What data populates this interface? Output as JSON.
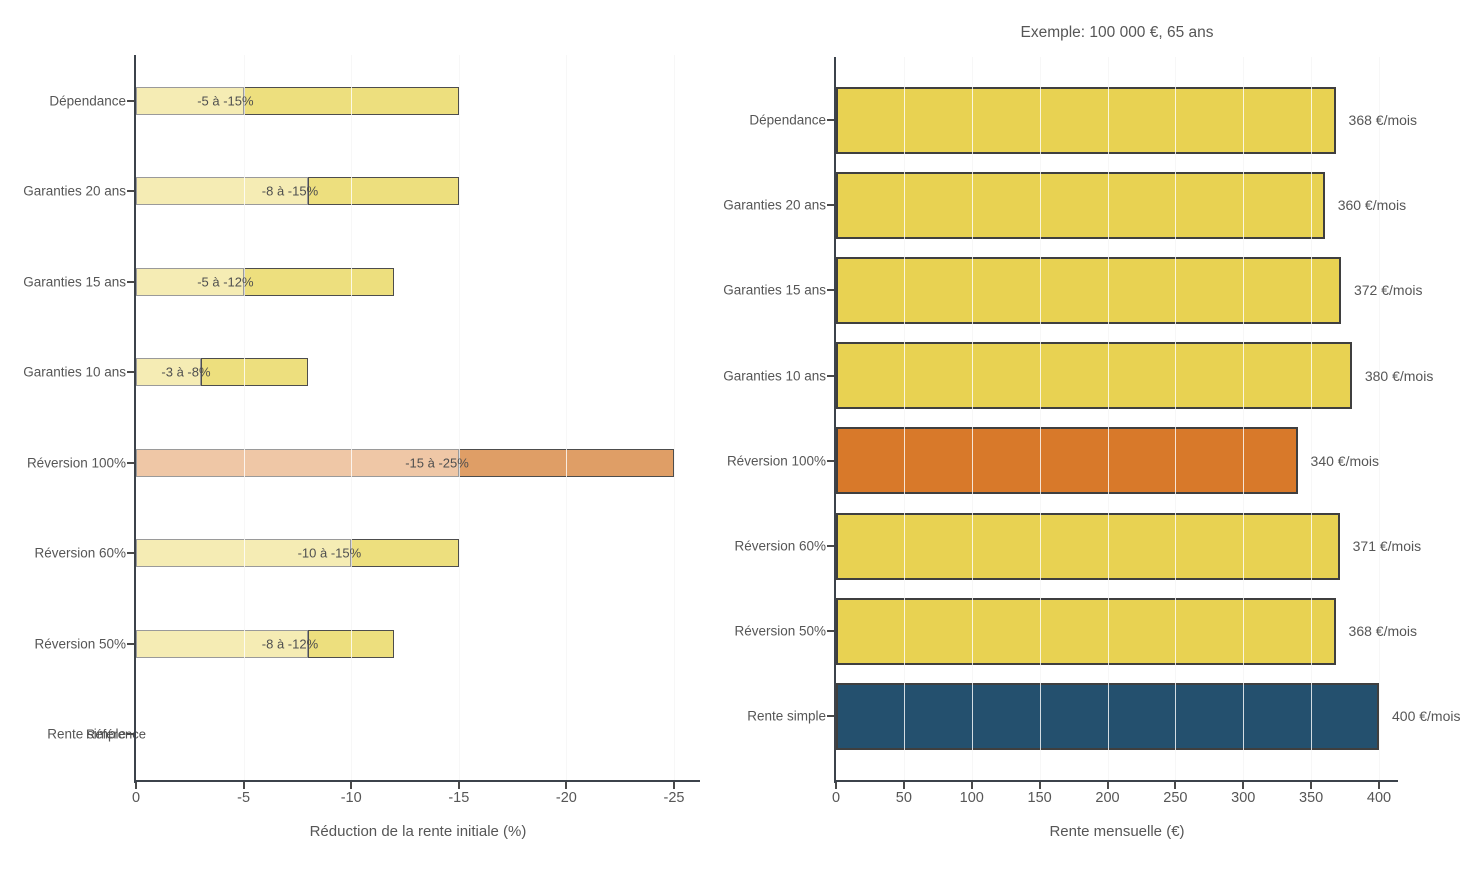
{
  "figure": {
    "background": "#ffffff",
    "description": "Deux graphiques à barres horizontales comparant des options de rente"
  },
  "colors": {
    "left_light_yellow": "#F5ECB4",
    "left_dark_yellow": "#EDDF7E",
    "left_light_orange": "#EFC7A6",
    "left_dark_orange": "#DF9E66",
    "left_light_border": "#9A9A9A",
    "left_dark_border": "#4D4D4D",
    "right_yellow": "#E8D252",
    "right_orange": "#D8792A",
    "right_blue": "#24506E",
    "right_bar_border": "#3F3F3F",
    "axis": "#3C434B",
    "grid": "#D8D8D8",
    "text": "#565656"
  },
  "chart_data": [
    {
      "type": "bar",
      "orientation": "horizontal",
      "title": "",
      "xlabel": "Réduction de la rente initiale (%)",
      "ylabel": "",
      "xlim": [
        0,
        -26.2
      ],
      "x_ticks": [
        "0",
        "-5",
        "-10",
        "-15",
        "-20",
        "-25"
      ],
      "x_tick_values": [
        0,
        -5,
        -10,
        -15,
        -20,
        -25
      ],
      "grid": true,
      "legend": false,
      "categories": [
        "Dépendance",
        "Garanties 20 ans",
        "Garanties 15 ans",
        "Garanties 10 ans",
        "Réversion 100%",
        "Réversion 60%",
        "Réversion 50%",
        "Rente simple"
      ],
      "bars": [
        {
          "category": "Dépendance",
          "range_pct": [
            -5,
            -15
          ],
          "label": "-5 à -15%",
          "style": "yellow"
        },
        {
          "category": "Garanties 20 ans",
          "range_pct": [
            -8,
            -15
          ],
          "label": "-8 à -15%",
          "style": "yellow"
        },
        {
          "category": "Garanties 15 ans",
          "range_pct": [
            -5,
            -12
          ],
          "label": "-5 à -12%",
          "style": "yellow"
        },
        {
          "category": "Garanties 10 ans",
          "range_pct": [
            -3,
            -8
          ],
          "label": "-3 à -8%",
          "style": "yellow"
        },
        {
          "category": "Réversion 100%",
          "range_pct": [
            -15,
            -25
          ],
          "label": "-15 à -25%",
          "style": "orange"
        },
        {
          "category": "Réversion 60%",
          "range_pct": [
            -10,
            -15
          ],
          "label": "-10 à -15%",
          "style": "yellow"
        },
        {
          "category": "Réversion 50%",
          "range_pct": [
            -8,
            -12
          ],
          "label": "-8 à -12%",
          "style": "yellow"
        },
        {
          "category": "Rente simple",
          "range_pct": [
            0,
            0
          ],
          "label": "Référence",
          "style": "reference"
        }
      ]
    },
    {
      "type": "bar",
      "orientation": "horizontal",
      "title": "Exemple: 100 000 €, 65 ans",
      "xlabel": "Rente mensuelle (€)",
      "ylabel": "",
      "xlim": [
        0,
        420
      ],
      "x_ticks": [
        "0",
        "50",
        "100",
        "150",
        "200",
        "250",
        "300",
        "350",
        "400"
      ],
      "x_tick_values": [
        0,
        50,
        100,
        150,
        200,
        250,
        300,
        350,
        400
      ],
      "grid": true,
      "legend": false,
      "categories": [
        "Dépendance",
        "Garanties 20 ans",
        "Garanties 15 ans",
        "Garanties 10 ans",
        "Réversion 100%",
        "Réversion 60%",
        "Réversion 50%",
        "Rente simple"
      ],
      "values": [
        368,
        360,
        372,
        380,
        340,
        371,
        368,
        400
      ],
      "bar_labels": [
        "368 €/mois",
        "360 €/mois",
        "372 €/mois",
        "380 €/mois",
        "340 €/mois",
        "371 €/mois",
        "368 €/mois",
        "400 €/mois"
      ],
      "bar_styles": [
        "yellow",
        "yellow",
        "yellow",
        "yellow",
        "orange",
        "yellow",
        "yellow",
        "blue"
      ]
    }
  ]
}
